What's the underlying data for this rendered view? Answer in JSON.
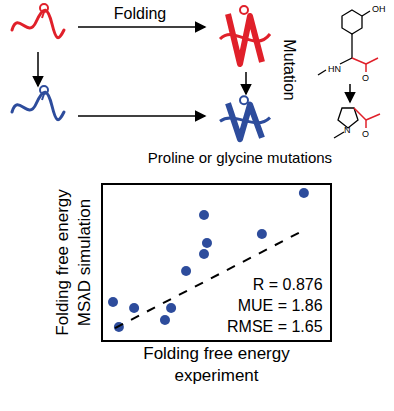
{
  "diagram": {
    "folding_label": "Folding",
    "mutation_label": "Mutation",
    "caption": "Proline or glycine mutations",
    "tyrosine_labels": [
      "OH",
      "HN",
      "O"
    ],
    "proline_labels": [
      "N",
      "O"
    ]
  },
  "chart_data": {
    "type": "scatter",
    "xlabel": [
      "Folding free energy",
      "experiment"
    ],
    "ylabel": [
      "Folding free energy",
      "MSλD simulation"
    ],
    "annotations": [
      "R = 0.876",
      "MUE = 1.86",
      "RMSE = 1.65"
    ],
    "xlim": [
      0,
      10
    ],
    "ylim": [
      0,
      10
    ],
    "xticks": [],
    "yticks": [],
    "tick_labels": false,
    "grid": false,
    "series": [
      {
        "type": "scatter",
        "marker": "circle",
        "color": "#2d4c9c",
        "x": [
          0.44,
          0.7,
          1.37,
          2.73,
          3.0,
          3.66,
          4.45,
          4.58,
          4.45,
          7.0,
          8.85
        ],
        "values": [
          2.45,
          0.84,
          2.06,
          1.29,
          2.06,
          4.45,
          5.55,
          6.26,
          8.06,
          6.84,
          9.48
        ]
      },
      {
        "type": "line",
        "line_style": "dashed",
        "color": "#000000",
        "x": [
          0.53,
          8.7
        ],
        "values": [
          0.77,
          6.97
        ]
      }
    ]
  }
}
